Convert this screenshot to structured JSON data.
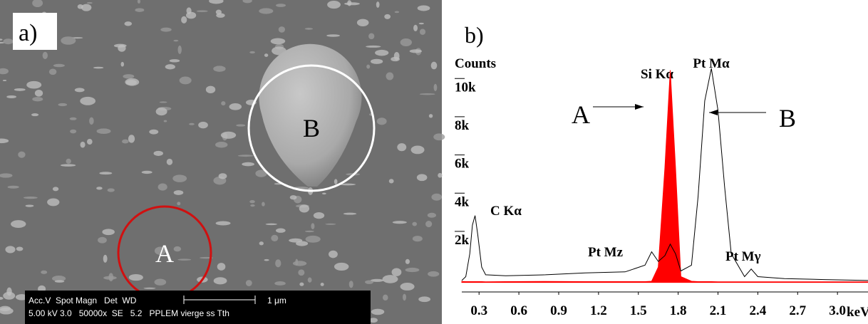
{
  "panel_a": {
    "label": "a)",
    "region_a": "A",
    "region_b": "B",
    "info_header": "Acc.V  Spot Magn   Det  WD",
    "scale": "1 μm",
    "info_values": "5.00 kV 3.0   50000x  SE   5.2   PPLEM vierge ss Tth"
  },
  "chart_data": {
    "type": "line",
    "panel_label": "b)",
    "ylabel": "Counts",
    "xlabel": "keV",
    "annotations": [
      "Si Kα",
      "Pt Mα",
      "C Kα",
      "Pt Mz",
      "Pt Mγ"
    ],
    "x": [
      0.17,
      0.2,
      0.23,
      0.25,
      0.27,
      0.29,
      0.32,
      0.35,
      0.5,
      0.8,
      1.1,
      1.4,
      1.55,
      1.6,
      1.65,
      1.7,
      1.74,
      1.78,
      1.82,
      1.9,
      1.95,
      2.0,
      2.05,
      2.1,
      2.15,
      2.2,
      2.3,
      2.35,
      2.4,
      2.6,
      2.9,
      3.23
    ],
    "series": [
      {
        "name": "A",
        "color": "#ff0000",
        "fill": true,
        "values": [
          50,
          40,
          40,
          40,
          40,
          40,
          40,
          30,
          40,
          50,
          40,
          40,
          40,
          60,
          800,
          6000,
          11100,
          6000,
          300,
          60,
          40,
          40,
          40,
          30,
          30,
          30,
          30,
          30,
          30,
          30,
          30,
          30
        ]
      },
      {
        "name": "B",
        "color": "#000000",
        "fill": false,
        "values": [
          100,
          300,
          1500,
          3000,
          3500,
          2500,
          800,
          400,
          350,
          400,
          500,
          550,
          900,
          1600,
          1100,
          1400,
          2000,
          1500,
          600,
          900,
          4500,
          9500,
          11200,
          9000,
          5000,
          1500,
          300,
          700,
          300,
          200,
          150,
          100
        ]
      }
    ],
    "xlim": [
      0.17,
      3.23
    ],
    "ylim": [
      -500,
      11500
    ],
    "xticks": [
      0.3,
      0.6,
      0.9,
      1.2,
      1.5,
      1.8,
      2.1,
      2.4,
      2.7,
      {
        "value": 3,
        "label": "3.0"
      }
    ],
    "yticks": [
      {
        "value": 2000,
        "label": "2k"
      },
      {
        "value": 4000,
        "label": "4k"
      },
      {
        "value": 6000,
        "label": "6k"
      },
      {
        "value": 8000,
        "label": "8k"
      },
      {
        "value": 10000,
        "label": "10k"
      }
    ]
  }
}
